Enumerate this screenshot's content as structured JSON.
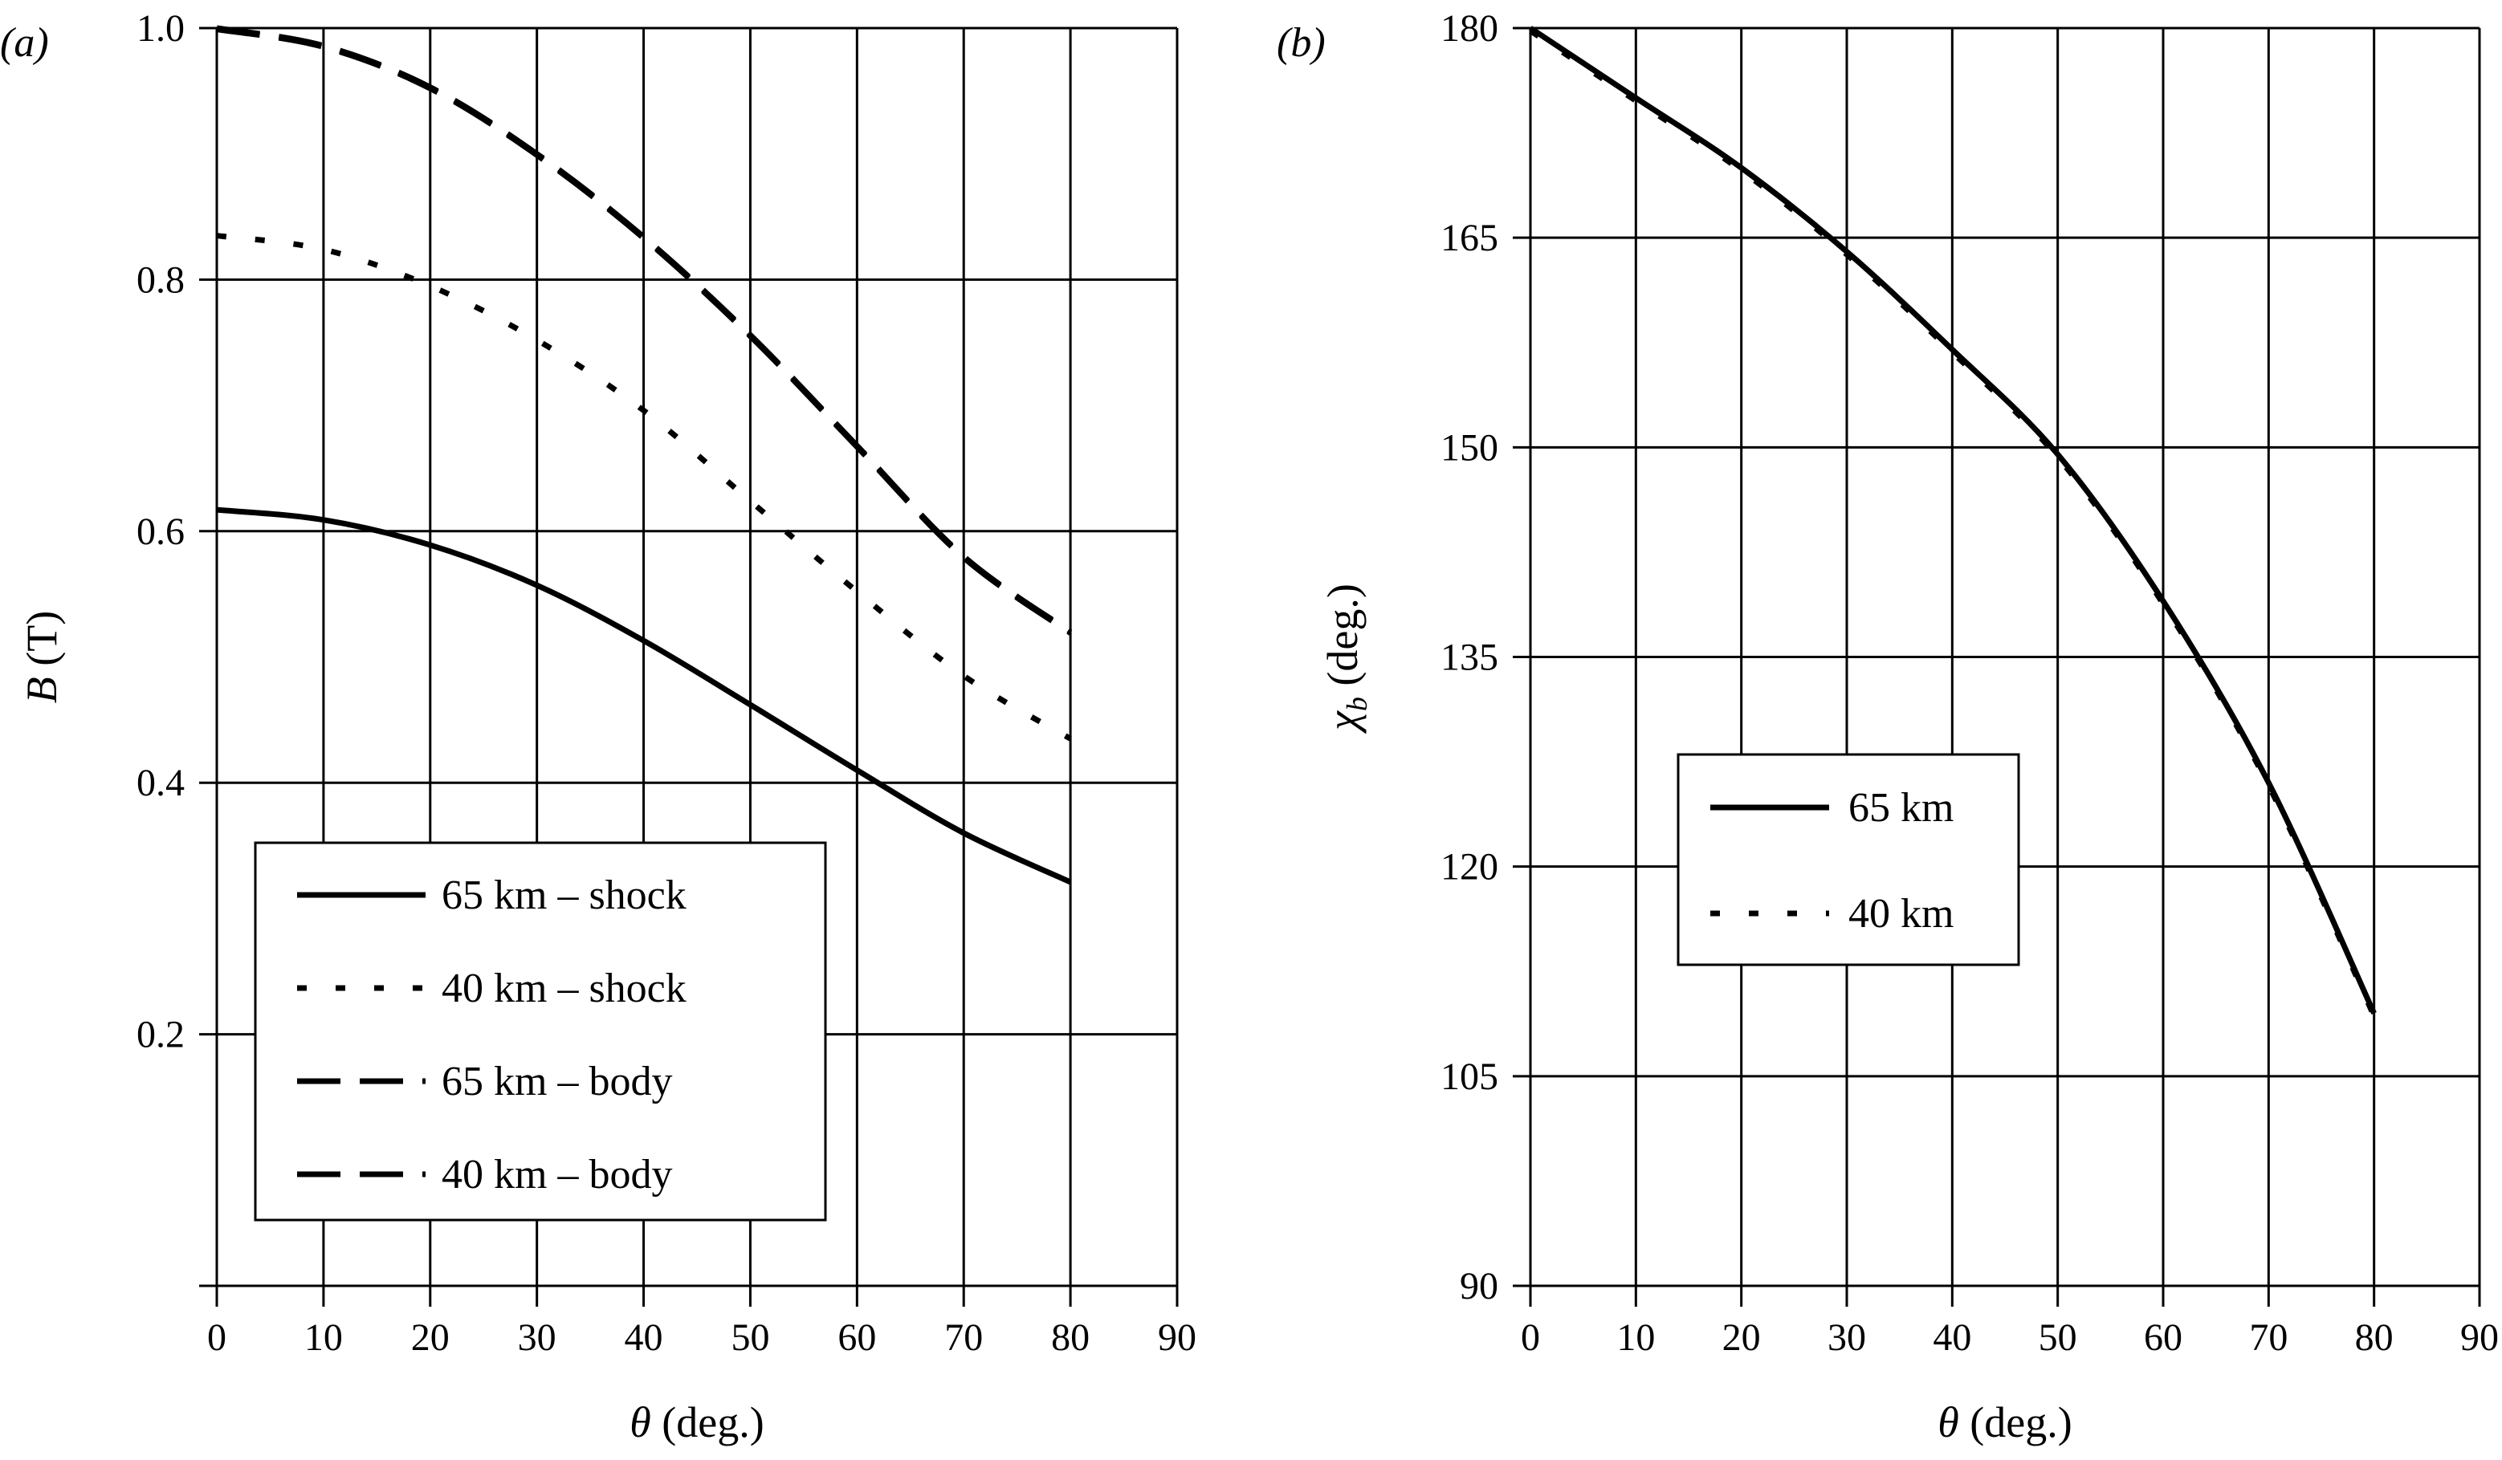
{
  "chart_data": [
    {
      "type": "line",
      "panel_label": "(a)",
      "xlabel": "θ (deg.)",
      "ylabel_var": "B",
      "ylabel_unit": " (T)",
      "xlim": [
        0,
        90
      ],
      "ylim": [
        0,
        1.0
      ],
      "xticks": [
        0,
        10,
        20,
        30,
        40,
        50,
        60,
        70,
        80,
        90
      ],
      "xtick_labels": [
        "0",
        "10",
        "20",
        "30",
        "40",
        "50",
        "60",
        "70",
        "80",
        "90"
      ],
      "yticks": [
        0.2,
        0.4,
        0.6,
        0.8,
        1.0
      ],
      "ytick_labels": [
        "0.2",
        "0.4",
        "0.6",
        "0.8",
        "1.0"
      ],
      "grid": true,
      "legend_position": "bottom-left",
      "series": [
        {
          "name": "65 km – shock",
          "style": "solid",
          "x": [
            0,
            10,
            20,
            30,
            40,
            50,
            60,
            70,
            80
          ],
          "y": [
            0.617,
            0.609,
            0.589,
            0.557,
            0.513,
            0.462,
            0.41,
            0.36,
            0.321
          ]
        },
        {
          "name": "40 km – shock",
          "style": "dotted",
          "x": [
            0,
            10,
            20,
            30,
            40,
            50,
            60,
            70,
            80
          ],
          "y": [
            0.835,
            0.824,
            0.795,
            0.752,
            0.696,
            0.624,
            0.552,
            0.485,
            0.435
          ]
        },
        {
          "name": "65 km – body",
          "style": "dashed",
          "x": [
            0,
            10,
            20,
            30,
            40,
            50,
            60,
            70,
            80
          ],
          "y": [
            1.0,
            0.986,
            0.953,
            0.9,
            0.834,
            0.756,
            0.668,
            0.58,
            0.52
          ]
        },
        {
          "name": "40 km – body",
          "style": "dashed",
          "x": [
            0,
            10,
            20,
            30,
            40,
            50,
            60,
            70,
            80
          ],
          "y": [
            0.999,
            0.985,
            0.952,
            0.899,
            0.833,
            0.755,
            0.667,
            0.579,
            0.519
          ]
        }
      ]
    },
    {
      "type": "line",
      "panel_label": "(b)",
      "xlabel": "θ (deg.)",
      "ylabel_var": "χ",
      "ylabel_sub": "b",
      "ylabel_unit": " (deg.)",
      "xlim": [
        0,
        90
      ],
      "ylim": [
        90,
        180
      ],
      "xticks": [
        0,
        10,
        20,
        30,
        40,
        50,
        60,
        70,
        80,
        90
      ],
      "xtick_labels": [
        "0",
        "10",
        "20",
        "30",
        "40",
        "50",
        "60",
        "70",
        "80",
        "90"
      ],
      "yticks": [
        90,
        105,
        120,
        135,
        150,
        165,
        180
      ],
      "ytick_labels": [
        "90",
        "105",
        "120",
        "135",
        "150",
        "165",
        "180"
      ],
      "grid": true,
      "legend_position": "center-left",
      "series": [
        {
          "name": "65 km",
          "style": "solid",
          "x": [
            0,
            10,
            20,
            30,
            40,
            50,
            60,
            70,
            80
          ],
          "y": [
            180,
            175,
            170,
            164,
            157,
            149.5,
            139,
            126,
            109.5
          ]
        },
        {
          "name": "40 km",
          "style": "dotted",
          "x": [
            0,
            10,
            20,
            30,
            40,
            50,
            60,
            70,
            80
          ],
          "y": [
            179.8,
            174.8,
            169.8,
            163.8,
            156.8,
            149.3,
            138.8,
            125.8,
            109.3
          ]
        }
      ]
    }
  ]
}
